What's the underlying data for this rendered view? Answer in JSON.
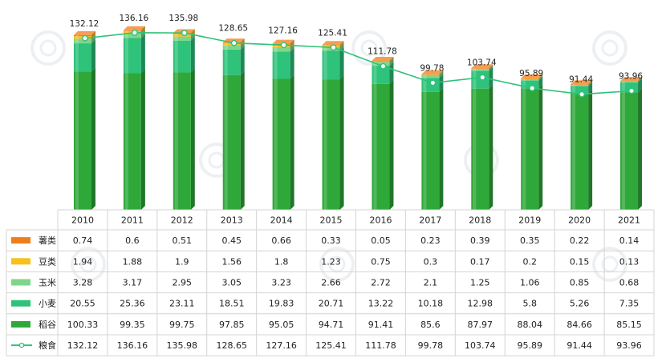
{
  "chart_data": {
    "type": "bar",
    "categories": [
      "2010",
      "2011",
      "2012",
      "2013",
      "2014",
      "2015",
      "2016",
      "2017",
      "2018",
      "2019",
      "2020",
      "2021"
    ],
    "series": [
      {
        "name": "薯类",
        "values": [
          0.74,
          0.6,
          0.51,
          0.45,
          0.66,
          0.33,
          0.05,
          0.23,
          0.39,
          0.35,
          0.22,
          0.14
        ],
        "color": "#f07d1a"
      },
      {
        "name": "豆类",
        "values": [
          1.94,
          1.88,
          1.9,
          1.56,
          1.8,
          1.23,
          0.75,
          0.3,
          0.17,
          0.2,
          0.15,
          0.13
        ],
        "color": "#f7c11a"
      },
      {
        "name": "玉米",
        "values": [
          3.28,
          3.17,
          2.95,
          3.05,
          3.23,
          2.66,
          2.72,
          2.1,
          1.25,
          1.06,
          0.85,
          0.68
        ],
        "color": "#7fd68a"
      },
      {
        "name": "小麦",
        "values": [
          20.55,
          25.36,
          23.11,
          18.51,
          19.83,
          20.71,
          13.22,
          10.18,
          12.98,
          5.8,
          5.26,
          7.35
        ],
        "color": "#2ec27a"
      },
      {
        "name": "稻谷",
        "values": [
          100.33,
          99.35,
          99.75,
          97.85,
          95.05,
          94.71,
          91.41,
          85.6,
          87.97,
          88.04,
          84.66,
          85.15
        ],
        "color": "#2fa83a"
      }
    ],
    "line_series": {
      "name": "粮食",
      "values": [
        132.12,
        136.16,
        135.98,
        128.65,
        127.16,
        125.41,
        111.78,
        99.78,
        103.74,
        95.89,
        91.44,
        93.96
      ],
      "color": "#2ec27a"
    },
    "stacked": true,
    "legend": "table-below",
    "data_table": true
  }
}
